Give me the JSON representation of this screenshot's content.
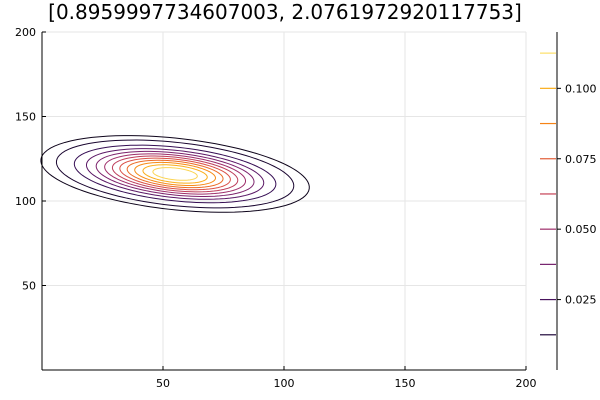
{
  "chart_data": {
    "type": "contour",
    "title": "[0.8959997734607003, 2.0761972920117753]",
    "xlabel": "",
    "ylabel": "",
    "xlim": [
      0,
      200
    ],
    "ylim": [
      0,
      200
    ],
    "xticks": [
      50,
      100,
      150,
      200
    ],
    "yticks": [
      50,
      100,
      150,
      200
    ],
    "grid": true,
    "gaussian": {
      "center": [
        55,
        116
      ],
      "sd_x": 22,
      "sd_y": 9,
      "correlation": -0.35,
      "peak": 0.12
    },
    "contour_levels": [
      0.005,
      0.01,
      0.02,
      0.03,
      0.04,
      0.05,
      0.06,
      0.07,
      0.08,
      0.09,
      0.1,
      0.11
    ],
    "colorbar": {
      "range": [
        0,
        0.12
      ],
      "ticks": [
        0.025,
        0.05,
        0.075,
        0.1
      ],
      "tick_labels": [
        "0.025",
        "0.050",
        "0.075",
        "0.100"
      ],
      "levels": [
        0.0125,
        0.025,
        0.0375,
        0.05,
        0.0625,
        0.075,
        0.0875,
        0.1,
        0.1125,
        0.125,
        0.1375,
        0.15,
        0.1625
      ],
      "colormap": [
        "#000004",
        "#2c0b4f",
        "#6a1c6e",
        "#a3306a",
        "#d74b4b",
        "#f57d15",
        "#fbb61a",
        "#fcffa4"
      ]
    }
  }
}
